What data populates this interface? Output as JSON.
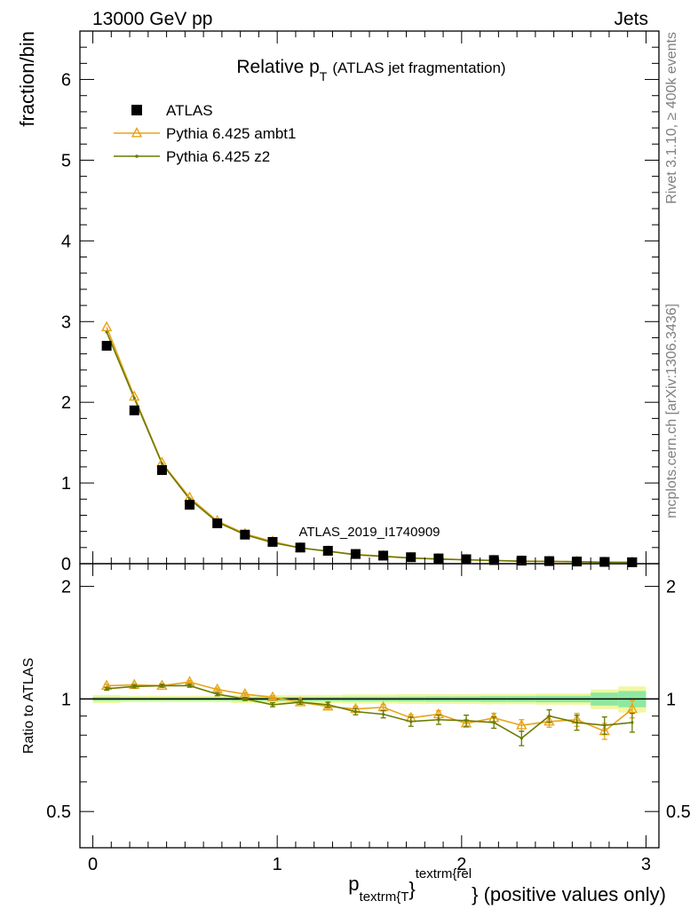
{
  "header": {
    "left": "13000 GeV pp",
    "right": "Jets"
  },
  "chart_data": {
    "type": "line",
    "title_main": "Relative p",
    "title_sub": "T",
    "title_extra": "(ATLAS jet fragmentation)",
    "ylabel": "fraction/bin",
    "ratio_ylabel": "Ratio to ATLAS",
    "xlabel_p": "p",
    "xlabel_sub": "textrm{T",
    "xlabel_sup": "textrm{rel",
    "xlabel_suffix": "} (positive values only)",
    "xlabel_brace": "}",
    "watermark": "ATLAS_2019_I1740909",
    "side_text_top": "Rivet 3.1.10, ≥ 400k events",
    "side_text_bottom": "mcplots.cern.ch [arXiv:1306.3436]",
    "xlim": [
      -0.07,
      3.07
    ],
    "ylim": [
      0,
      6.6
    ],
    "ratio_ylim": [
      0.4,
      2.3
    ],
    "x_ticks": [
      0,
      1,
      2,
      3
    ],
    "x_tick_labels": [
      "0",
      "1",
      "2",
      "3"
    ],
    "y_ticks": [
      0,
      1,
      2,
      3,
      4,
      5,
      6
    ],
    "y_tick_labels": [
      "0",
      "1",
      "2",
      "3",
      "4",
      "5",
      "6"
    ],
    "ratio_y_ticks": [
      0.5,
      1,
      2
    ],
    "ratio_y_tick_labels": [
      "0.5",
      "1",
      "2"
    ],
    "x": [
      0.075,
      0.225,
      0.375,
      0.525,
      0.675,
      0.825,
      0.975,
      1.125,
      1.275,
      1.425,
      1.575,
      1.725,
      1.875,
      2.025,
      2.175,
      2.325,
      2.475,
      2.625,
      2.775,
      2.925
    ],
    "series": [
      {
        "name": "ATLAS",
        "color": "#000000",
        "marker": "square",
        "values": [
          2.7,
          1.9,
          1.16,
          0.73,
          0.5,
          0.36,
          0.27,
          0.2,
          0.16,
          0.12,
          0.1,
          0.08,
          0.065,
          0.055,
          0.045,
          0.038,
          0.032,
          0.027,
          0.022,
          0.018
        ]
      },
      {
        "name": "Pythia 6.425 ambt1",
        "color": "#e8a317",
        "marker": "triangle",
        "values": [
          2.93,
          2.07,
          1.25,
          0.82,
          0.53,
          0.37,
          0.275,
          0.195,
          0.155,
          0.113,
          0.095,
          0.071,
          0.059,
          0.048,
          0.04,
          0.032,
          0.028,
          0.024,
          0.018,
          0.017
        ],
        "ratio": [
          1.085,
          1.09,
          1.085,
          1.11,
          1.06,
          1.03,
          1.01,
          0.98,
          0.955,
          0.94,
          0.95,
          0.89,
          0.91,
          0.86,
          0.89,
          0.85,
          0.87,
          0.88,
          0.82,
          0.94
        ],
        "ratio_err": [
          0.01,
          0.01,
          0.01,
          0.01,
          0.01,
          0.01,
          0.01,
          0.012,
          0.012,
          0.015,
          0.015,
          0.018,
          0.02,
          0.02,
          0.025,
          0.03,
          0.03,
          0.035,
          0.04,
          0.05
        ]
      },
      {
        "name": "Pythia 6.425 z2",
        "color": "#6b7a00",
        "marker": "dot",
        "values": [
          2.87,
          2.05,
          1.24,
          0.8,
          0.515,
          0.36,
          0.26,
          0.196,
          0.155,
          0.111,
          0.09,
          0.069,
          0.057,
          0.048,
          0.039,
          0.03,
          0.029,
          0.024,
          0.019,
          0.0155
        ],
        "ratio": [
          1.065,
          1.08,
          1.085,
          1.085,
          1.03,
          1.0,
          0.965,
          0.98,
          0.965,
          0.925,
          0.91,
          0.87,
          0.88,
          0.875,
          0.865,
          0.785,
          0.9,
          0.865,
          0.85,
          0.865
        ],
        "ratio_err": [
          0.01,
          0.01,
          0.01,
          0.01,
          0.01,
          0.01,
          0.012,
          0.012,
          0.015,
          0.018,
          0.02,
          0.025,
          0.025,
          0.03,
          0.03,
          0.035,
          0.035,
          0.04,
          0.045,
          0.05
        ]
      }
    ],
    "ratio_band": {
      "inner_color": "#8fe8a0",
      "outer_color": "#f2f7a0",
      "inner": [
        0.012,
        0.01,
        0.01,
        0.01,
        0.01,
        0.012,
        0.012,
        0.013,
        0.013,
        0.014,
        0.014,
        0.015,
        0.016,
        0.016,
        0.018,
        0.018,
        0.02,
        0.02,
        0.04,
        0.05
      ],
      "outer": [
        0.025,
        0.02,
        0.02,
        0.02,
        0.02,
        0.025,
        0.025,
        0.025,
        0.025,
        0.028,
        0.028,
        0.03,
        0.03,
        0.03,
        0.032,
        0.032,
        0.035,
        0.035,
        0.06,
        0.08
      ]
    }
  }
}
